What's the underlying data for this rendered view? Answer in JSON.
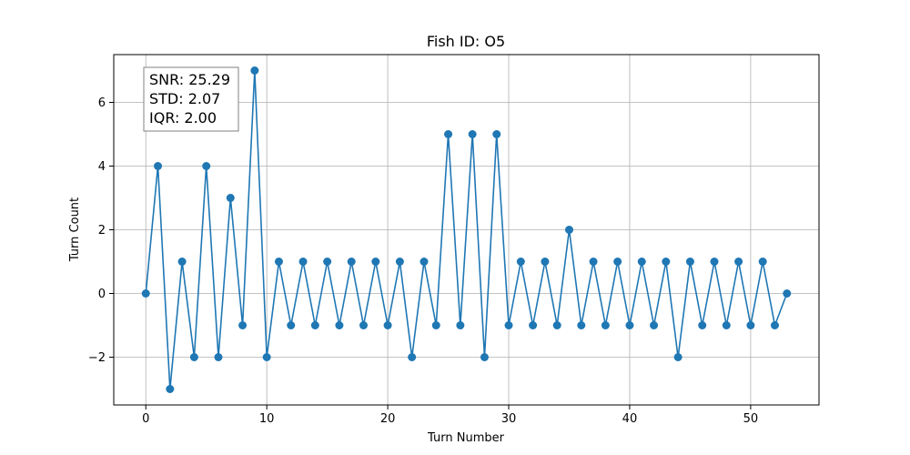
{
  "chart_data": {
    "type": "line",
    "title": "Fish ID: O5",
    "xlabel": "Turn Number",
    "ylabel": "Turn Count",
    "xlim": [
      -2.65,
      55.65
    ],
    "ylim": [
      -3.5,
      7.5
    ],
    "xticks": [
      0,
      10,
      20,
      30,
      40,
      50
    ],
    "yticks": [
      -2,
      0,
      2,
      4,
      6
    ],
    "xtick_labels": [
      "0",
      "10",
      "20",
      "30",
      "40",
      "50"
    ],
    "ytick_labels": [
      "−2",
      "0",
      "2",
      "4",
      "6"
    ],
    "grid": true,
    "series": [
      {
        "name": "Turn Count",
        "color": "#1f77b4",
        "marker": "circle",
        "x": [
          0,
          1,
          2,
          3,
          4,
          5,
          6,
          7,
          8,
          9,
          10,
          11,
          12,
          13,
          14,
          15,
          16,
          17,
          18,
          19,
          20,
          21,
          22,
          23,
          24,
          25,
          26,
          27,
          28,
          29,
          30,
          31,
          32,
          33,
          34,
          35,
          36,
          37,
          38,
          39,
          40,
          41,
          42,
          43,
          44,
          45,
          46,
          47,
          48,
          49,
          50,
          51,
          52,
          53
        ],
        "values": [
          0,
          4,
          -3,
          1,
          -2,
          4,
          -2,
          3,
          -1,
          7,
          -2,
          1,
          -1,
          1,
          -1,
          1,
          -1,
          1,
          -1,
          1,
          -1,
          1,
          -2,
          1,
          -1,
          5,
          -1,
          5,
          -2,
          5,
          -1,
          1,
          -1,
          1,
          -1,
          2,
          -1,
          1,
          -1,
          1,
          -1,
          1,
          -1,
          1,
          -2,
          1,
          -1,
          1,
          -1,
          1,
          -1,
          1,
          -1,
          0
        ]
      }
    ],
    "annotation": {
      "lines": [
        "SNR: 25.29",
        "STD: 2.07",
        "IQR: 2.00"
      ],
      "placement": "top-left"
    }
  }
}
